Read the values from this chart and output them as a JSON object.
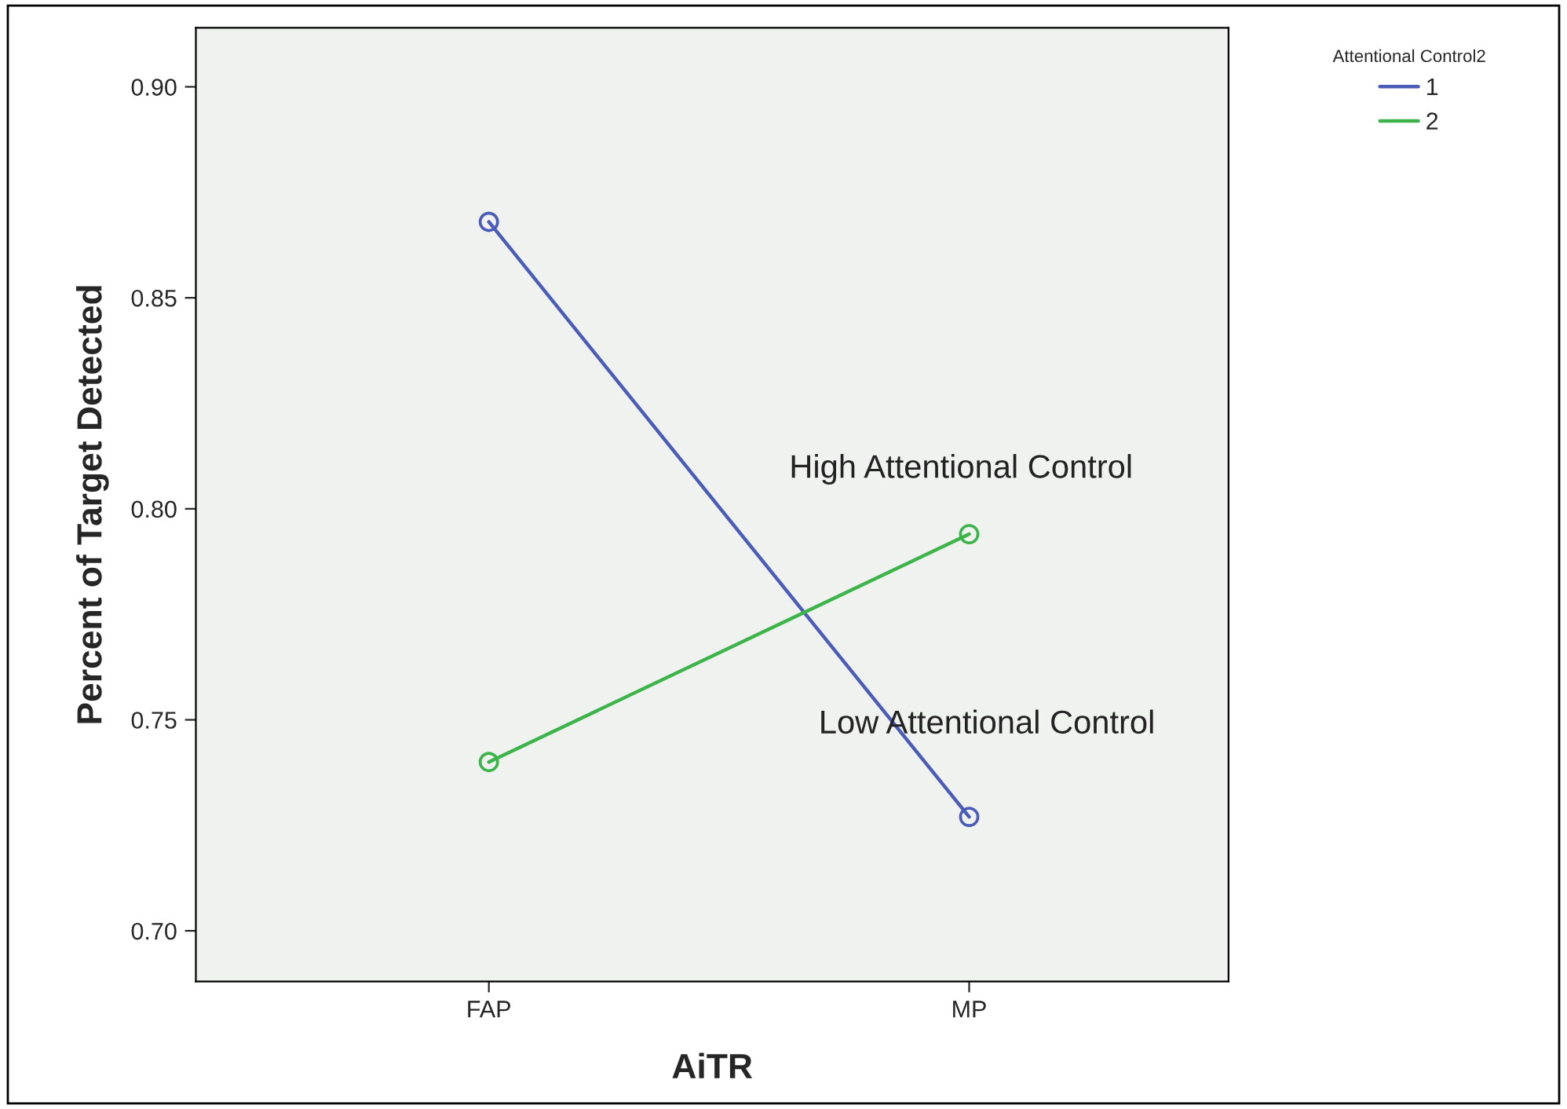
{
  "chart_data": {
    "type": "line",
    "xlabel": "AiTR",
    "ylabel": "Percent of Target Detected",
    "legend_title": "Attentional Control2",
    "categories": [
      "FAP",
      "MP"
    ],
    "series": [
      {
        "name": "1",
        "color": "#4a5cb8",
        "values": [
          0.868,
          0.727
        ]
      },
      {
        "name": "2",
        "color": "#3cb44a",
        "values": [
          0.74,
          0.794
        ]
      }
    ],
    "ylim": [
      0.688,
      0.914
    ],
    "yticks": [
      {
        "value": 0.7,
        "label": "0.70"
      },
      {
        "value": 0.75,
        "label": "0.75"
      },
      {
        "value": 0.8,
        "label": "0.80"
      },
      {
        "value": 0.85,
        "label": "0.85"
      },
      {
        "value": 0.9,
        "label": "0.90"
      }
    ],
    "marker": "circle",
    "grid": false,
    "legend": "top right",
    "annotations": [
      "High Attentional Control",
      "Low Attentional Control"
    ]
  }
}
